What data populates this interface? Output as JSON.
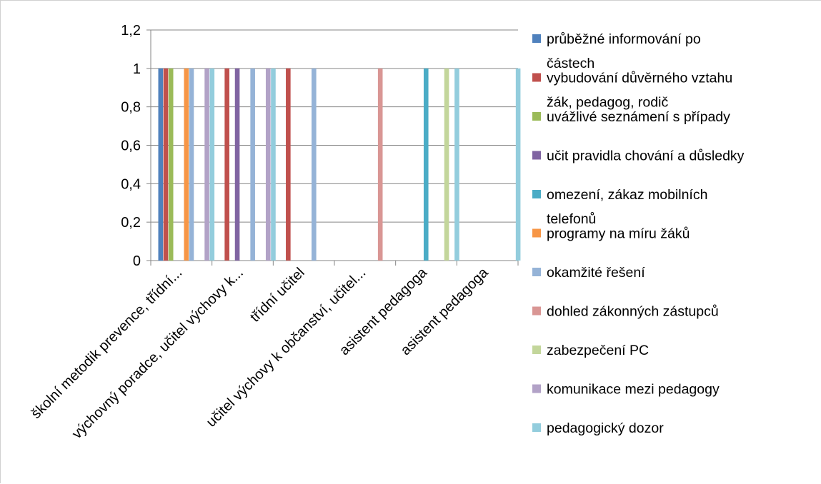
{
  "chart_data": {
    "type": "bar",
    "title": "",
    "xlabel": "",
    "ylabel": "",
    "ylim": [
      0,
      1.2
    ],
    "y_ticks": [
      "0",
      "0,2",
      "0,4",
      "0,6",
      "0,8",
      "1",
      "1,2"
    ],
    "grid": true,
    "legend_position": "right",
    "categories": [
      "školní metodik prevence, třídní...",
      "výchovný poradce, učitel výchovy k...",
      "třídní učitel",
      "učitel výchovy k občanství, učitel...",
      "asistent pedagoga",
      "asistent pedagoga"
    ],
    "series": [
      {
        "name": "průběžné informování po částech",
        "legend_lines": [
          "průběžné informování po",
          "částech"
        ],
        "color": "#4F81BD",
        "values": [
          1,
          0,
          0,
          0,
          0,
          0
        ]
      },
      {
        "name": "vybudování důvěrného vztahu žák, pedagog, rodič",
        "legend_lines": [
          "vybudování důvěrného vztahu",
          "žák, pedagog, rodič"
        ],
        "color": "#C0504D",
        "values": [
          1,
          1,
          1,
          0,
          0,
          0
        ]
      },
      {
        "name": "uvážlivé seznámení s případy",
        "legend_lines": [
          "uvážlivé seznámení s případy"
        ],
        "color": "#9BBB59",
        "values": [
          1,
          0,
          0,
          0,
          0,
          0
        ]
      },
      {
        "name": "učit pravidla chování a důsledky",
        "legend_lines": [
          "učit pravidla chování a důsledky"
        ],
        "color": "#8064A2",
        "values": [
          0,
          1,
          0,
          0,
          0,
          0
        ]
      },
      {
        "name": "omezení, zákaz mobilních telefonů",
        "legend_lines": [
          "omezení, zákaz mobilních",
          "telefonů"
        ],
        "color": "#4BACC6",
        "values": [
          0,
          0,
          0,
          0,
          1,
          0
        ]
      },
      {
        "name": "programy na míru žáků",
        "legend_lines": [
          "programy na míru žáků"
        ],
        "color": "#F79646",
        "values": [
          1,
          0,
          0,
          0,
          0,
          0
        ]
      },
      {
        "name": "okamžité řešení",
        "legend_lines": [
          "okamžité řešení"
        ],
        "color": "#95B3D7",
        "values": [
          1,
          1,
          1,
          0,
          0,
          0
        ]
      },
      {
        "name": "dohled zákonných zástupců",
        "legend_lines": [
          "dohled zákonných zástupců"
        ],
        "color": "#D99694",
        "values": [
          0,
          0,
          0,
          1,
          0,
          0
        ]
      },
      {
        "name": "zabezpečení PC",
        "legend_lines": [
          "zabezpečení PC"
        ],
        "color": "#C3D69B",
        "values": [
          0,
          0,
          0,
          0,
          1,
          0
        ]
      },
      {
        "name": "komunikace mezi pedagogy",
        "legend_lines": [
          "komunikace mezi pedagogy"
        ],
        "color": "#B2A2C7",
        "values": [
          1,
          1,
          0,
          0,
          0,
          0
        ]
      },
      {
        "name": "pedagogický dozor",
        "legend_lines": [
          "pedagogický dozor"
        ],
        "color": "#93CDDD",
        "values": [
          1,
          1,
          0,
          0,
          1,
          1
        ]
      }
    ]
  }
}
